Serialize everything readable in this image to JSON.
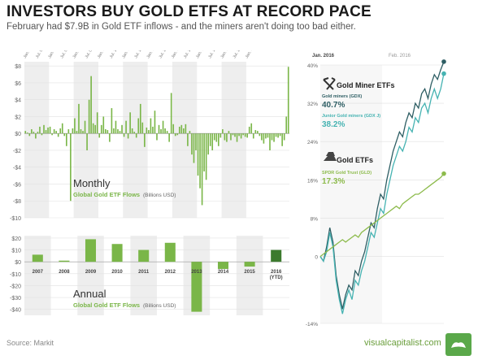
{
  "header": {
    "title": "INVESTORS BUY GOLD ETFS AT RECORD PACE",
    "subtitle": "February had $7.9B in Gold ETF inflows - and the miners aren't doing too bad either."
  },
  "footer": {
    "source": "Source: Markit",
    "brand": "visualcapitalist.com"
  },
  "colors": {
    "green": "#7ab648",
    "dark_teal": "#2e5e64",
    "teal": "#46b3b2",
    "gold_green": "#8dbb4c",
    "band": "#eeeeee"
  },
  "chart_data": [
    {
      "type": "bar",
      "id": "monthly",
      "title": "Monthly",
      "subtitle": "Global Gold ETF Flows",
      "unit_label": "(Billions USD)",
      "x_tick_labels": [
        "Jan. 07",
        "Jul. 07",
        "Jan. 08",
        "Jul. 08",
        "Jan. 09",
        "Jul. 09",
        "Jan. 10",
        "Jul. 10",
        "Jan. 11",
        "Jul. 11",
        "Jan. 12",
        "Jul. 12",
        "Jan. 13",
        "Jul. 13",
        "Jan. 14",
        "Jul. 14",
        "Jan. 15",
        "Jul. 15",
        "Jan. 16"
      ],
      "y_ticks": [
        -10,
        -8,
        -6,
        -4,
        -2,
        0,
        2,
        4,
        6,
        8
      ],
      "y_tick_labels": [
        "-$10",
        "-$8",
        "-$6",
        "-$4",
        "-$2",
        "$0",
        "$2",
        "$4",
        "$6",
        "$8"
      ],
      "ylim": [
        -10,
        8.5
      ],
      "values": [
        0.3,
        0.1,
        -0.3,
        0.5,
        0.2,
        -0.6,
        0.2,
        0.8,
        -0.2,
        1.0,
        0.4,
        0.7,
        0.8,
        -0.2,
        0.5,
        0.3,
        -0.4,
        0.6,
        1.2,
        -0.3,
        -1.5,
        0.5,
        -8.0,
        0.6,
        1.8,
        0.3,
        3.5,
        0.5,
        0.3,
        1.5,
        -2.0,
        4.0,
        6.8,
        1.2,
        1.0,
        2.5,
        -0.5,
        1.0,
        2.0,
        0.5,
        0.4,
        -1.0,
        3.0,
        0.6,
        1.5,
        0.5,
        0.3,
        1.0,
        -0.4,
        1.5,
        -0.6,
        2.5,
        0.6,
        0.2,
        -0.5,
        1.8,
        3.5,
        1.3,
        -1.6,
        0.7,
        0.4,
        1.8,
        0.8,
        2.7,
        -0.8,
        1.0,
        0.5,
        1.5,
        0.6,
        0.3,
        -1.0,
        4.8,
        1.1,
        -0.3,
        -0.2,
        0.8,
        1.0,
        0.6,
        1.1,
        -1.5,
        0.3,
        -2.5,
        -3.5,
        -2.0,
        -5.0,
        -6.5,
        -8.5,
        -4.5,
        -5.5,
        -2.5,
        -1.5,
        -2.0,
        -0.8,
        -1.0,
        -1.5,
        -0.5,
        0.5,
        -0.8,
        -1.0,
        0.3,
        -0.8,
        -0.2,
        -0.4,
        -1.0,
        -0.3,
        -0.6,
        -0.2,
        -0.4,
        -0.5,
        0.8,
        1.2,
        -0.6,
        0.4,
        0.3,
        -0.3,
        -0.8,
        -1.2,
        -0.6,
        -0.5,
        -2.0,
        -0.8,
        -1.0,
        -0.4,
        -0.5,
        -0.3,
        -1.5,
        -0.8,
        2.0,
        7.9
      ]
    },
    {
      "type": "bar",
      "id": "annual",
      "title": "Annual",
      "subtitle": "Global Gold ETF Flows",
      "unit_label": "(Billions USD)",
      "categories": [
        "2007",
        "2008",
        "2009",
        "2010",
        "2011",
        "2012",
        "2013",
        "2014",
        "2015",
        "2016 (YTD)"
      ],
      "values": [
        6,
        1,
        19,
        15,
        10,
        16,
        -42,
        -6,
        -4,
        10
      ],
      "y_ticks": [
        20,
        10,
        0,
        -10,
        -20,
        -30,
        -40
      ],
      "y_tick_labels": [
        "$20",
        "$10",
        "$0",
        "-$10",
        "-$20",
        "-$30",
        "-$40"
      ],
      "ylim": [
        -45,
        22
      ]
    },
    {
      "type": "line",
      "id": "ytd",
      "x_tick_labels": [
        "Jan. 2016",
        "Feb. 2016"
      ],
      "y_ticks": [
        -14,
        0,
        8,
        16,
        24,
        32,
        40
      ],
      "y_tick_labels": [
        "-14%",
        "0",
        "8%",
        "16%",
        "24%",
        "32%",
        "40%"
      ],
      "ylim": [
        -14,
        40
      ],
      "group_labels": [
        "Gold Miner ETFs",
        "Gold ETFs"
      ],
      "series": [
        {
          "name": "Gold miners (GDX)",
          "display_value": "40.7%",
          "color": "#2e5e64",
          "values": [
            0,
            -1,
            2,
            6,
            3,
            -4,
            -8,
            -11,
            -8,
            -6,
            -7,
            -3,
            -4,
            -1,
            1,
            4,
            7,
            6,
            10,
            13,
            12,
            16,
            19,
            22,
            24,
            26,
            25,
            28,
            30,
            29,
            32,
            31,
            34,
            35,
            33,
            36,
            38,
            37,
            39,
            40.7
          ]
        },
        {
          "name": "Junior Gold miners (GDX J)",
          "display_value": "38.2%",
          "color": "#46b3b2",
          "values": [
            0,
            -1,
            1,
            5,
            2,
            -5,
            -9,
            -12,
            -9,
            -7,
            -9,
            -5,
            -6,
            -3,
            -1,
            2,
            5,
            4,
            7,
            10,
            9,
            13,
            16,
            19,
            21,
            23,
            22,
            24,
            27,
            26,
            29,
            28,
            31,
            32,
            30,
            33,
            35,
            33,
            35,
            38.2
          ]
        },
        {
          "name": "SPDR Gold Trust (GLD)",
          "display_value": "17.3%",
          "color": "#8dbb4c",
          "values": [
            0,
            0.5,
            1,
            1.5,
            2,
            2.5,
            3,
            3.5,
            3,
            3.5,
            4,
            4.5,
            4,
            5,
            5.5,
            6,
            6.5,
            7,
            7.5,
            8,
            8.5,
            9,
            9.5,
            10,
            10.5,
            10,
            11,
            11.5,
            12,
            12.5,
            13,
            13,
            13.5,
            14,
            14.5,
            15,
            15.5,
            16,
            16.5,
            17.3
          ]
        }
      ]
    }
  ]
}
